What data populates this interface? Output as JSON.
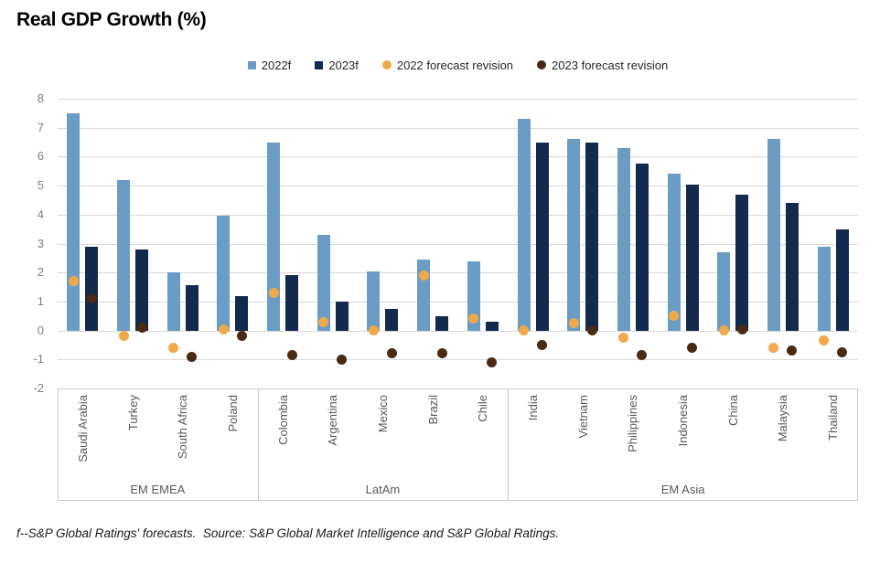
{
  "title": "Real GDP Growth (%)",
  "footnote": "f--S&P Global Ratings' forecasts.  Source: S&P Global Market Intelligence and S&P Global Ratings.",
  "colors": {
    "bar_2022f": "#6A9CC4",
    "bar_2023f": "#122A4D",
    "dot_2022_revision": "#F0A94A",
    "dot_2023_revision": "#4A2A12",
    "gridline": "#D9D9D9",
    "box_border": "#C9C9C9",
    "y_tick_text": "#7F7F7F",
    "category_text": "#595959"
  },
  "legend": [
    {
      "id": "2022f",
      "label": "2022f",
      "marker": "square",
      "color_key": "bar_2022f"
    },
    {
      "id": "2023f",
      "label": "2023f",
      "marker": "square",
      "color_key": "bar_2023f"
    },
    {
      "id": "2022-forecast-revision",
      "label": "2022 forecast revision",
      "marker": "circle",
      "color_key": "dot_2022_revision"
    },
    {
      "id": "2023-forecast-revision",
      "label": "2023 forecast revision",
      "marker": "circle",
      "color_key": "dot_2023_revision"
    }
  ],
  "y_axis": {
    "min": -2,
    "max": 8,
    "step": 1
  },
  "chart_data": {
    "type": "bar",
    "title": "Real GDP Growth (%)",
    "xlabel": "",
    "ylabel": "",
    "unit": "%",
    "ylim": [
      -2,
      8
    ],
    "ytick_step": 1,
    "grid": true,
    "legend_position": "top-center",
    "series_names": [
      "2022f",
      "2023f",
      "2022 forecast revision",
      "2023 forecast revision"
    ],
    "groups": [
      {
        "name": "EM EMEA",
        "countries": [
          {
            "name": "Saudi Arabia",
            "f2022": 7.5,
            "f2023": 2.9,
            "rev2022": 1.7,
            "rev2023": 1.1
          },
          {
            "name": "Turkey",
            "f2022": 5.2,
            "f2023": 2.8,
            "rev2022": -0.2,
            "rev2023": 0.1
          },
          {
            "name": "South Africa",
            "f2022": 2.0,
            "f2023": 1.55,
            "rev2022": -0.6,
            "rev2023": -0.9
          },
          {
            "name": "Poland",
            "f2022": 3.95,
            "f2023": 1.2,
            "rev2022": 0.05,
            "rev2023": -0.2
          }
        ]
      },
      {
        "name": "LatAm",
        "countries": [
          {
            "name": "Colombia",
            "f2022": 6.5,
            "f2023": 1.9,
            "rev2022": 1.3,
            "rev2023": -0.85
          },
          {
            "name": "Argentina",
            "f2022": 3.3,
            "f2023": 1.0,
            "rev2022": 0.3,
            "rev2023": -1.0
          },
          {
            "name": "Mexico",
            "f2022": 2.05,
            "f2023": 0.75,
            "rev2022": 0.0,
            "rev2023": -0.8
          },
          {
            "name": "Brazil",
            "f2022": 2.45,
            "f2023": 0.5,
            "rev2022": 1.9,
            "rev2023": -0.8
          },
          {
            "name": "Chile",
            "f2022": 2.4,
            "f2023": 0.3,
            "rev2022": 0.4,
            "rev2023": -1.1
          }
        ]
      },
      {
        "name": "EM Asia",
        "countries": [
          {
            "name": "India",
            "f2022": 7.3,
            "f2023": 6.5,
            "rev2022": 0.0,
            "rev2023": -0.5
          },
          {
            "name": "Vietnam",
            "f2022": 6.6,
            "f2023": 6.5,
            "rev2022": 0.25,
            "rev2023": 0.0
          },
          {
            "name": "Philippines",
            "f2022": 6.3,
            "f2023": 5.75,
            "rev2022": -0.25,
            "rev2023": -0.85
          },
          {
            "name": "Indonesia",
            "f2022": 5.4,
            "f2023": 5.05,
            "rev2022": 0.5,
            "rev2023": -0.6
          },
          {
            "name": "China",
            "f2022": 2.7,
            "f2023": 4.7,
            "rev2022": 0.0,
            "rev2023": 0.05
          },
          {
            "name": "Malaysia",
            "f2022": 6.6,
            "f2023": 4.4,
            "rev2022": -0.6,
            "rev2023": -0.7
          },
          {
            "name": "Thailand",
            "f2022": 2.9,
            "f2023": 3.5,
            "rev2022": -0.35,
            "rev2023": -0.75
          }
        ]
      }
    ]
  }
}
